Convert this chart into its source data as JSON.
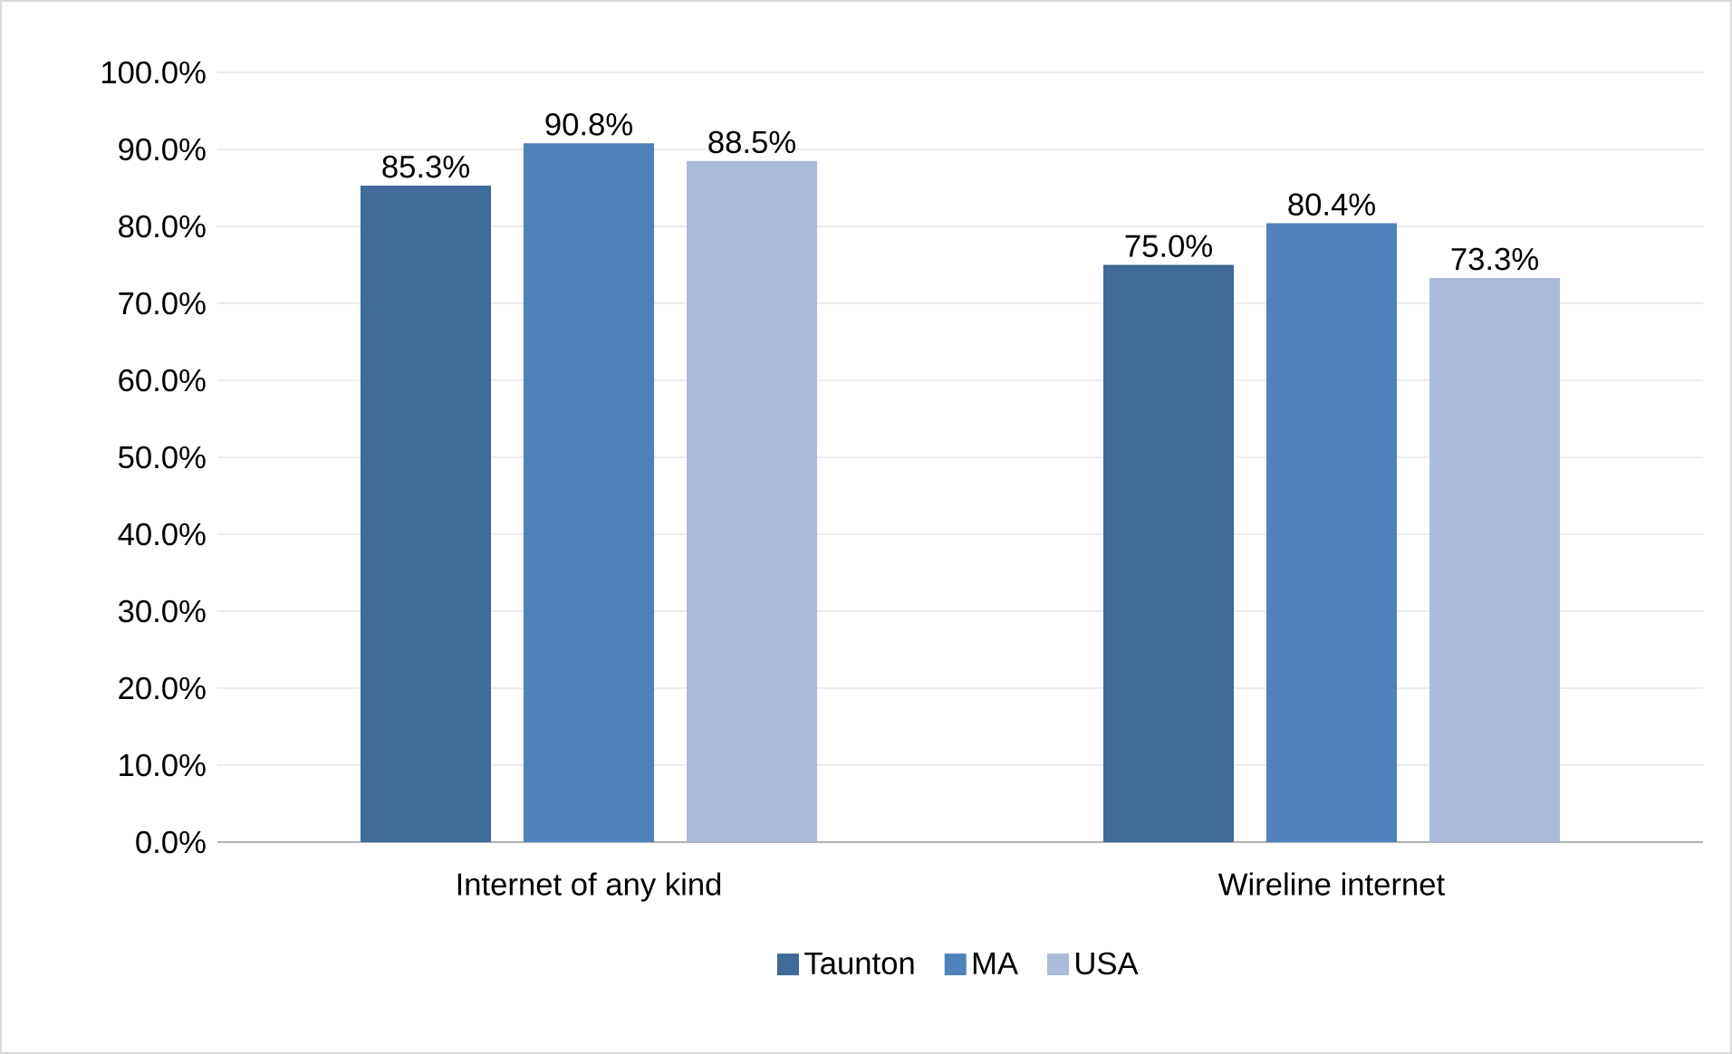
{
  "chart_data": {
    "type": "bar",
    "categories": [
      "Internet of any kind",
      "Wireline internet"
    ],
    "series": [
      {
        "name": "Taunton",
        "color": "#3f6a9a",
        "values": [
          85.3,
          75.0
        ],
        "value_labels": [
          "85.3%",
          "75.0%"
        ]
      },
      {
        "name": "MA",
        "color": "#4f81bd",
        "values": [
          90.8,
          80.4
        ],
        "value_labels": [
          "90.8%",
          "80.4%"
        ]
      },
      {
        "name": "USA",
        "color": "#abbad9",
        "values": [
          88.5,
          73.3
        ],
        "value_labels": [
          "88.5%",
          "73.3%"
        ]
      }
    ],
    "ylim": [
      0,
      100
    ],
    "yticks": [
      {
        "value": 0,
        "label": "0.0%"
      },
      {
        "value": 10,
        "label": "10.0%"
      },
      {
        "value": 20,
        "label": "20.0%"
      },
      {
        "value": 30,
        "label": "30.0%"
      },
      {
        "value": 40,
        "label": "40.0%"
      },
      {
        "value": 50,
        "label": "50.0%"
      },
      {
        "value": 60,
        "label": "60.0%"
      },
      {
        "value": 70,
        "label": "70.0%"
      },
      {
        "value": 80,
        "label": "80.0%"
      },
      {
        "value": 90,
        "label": "90.0%"
      },
      {
        "value": 100,
        "label": "100.0%"
      }
    ],
    "grid": "y",
    "legend": "bottom"
  }
}
